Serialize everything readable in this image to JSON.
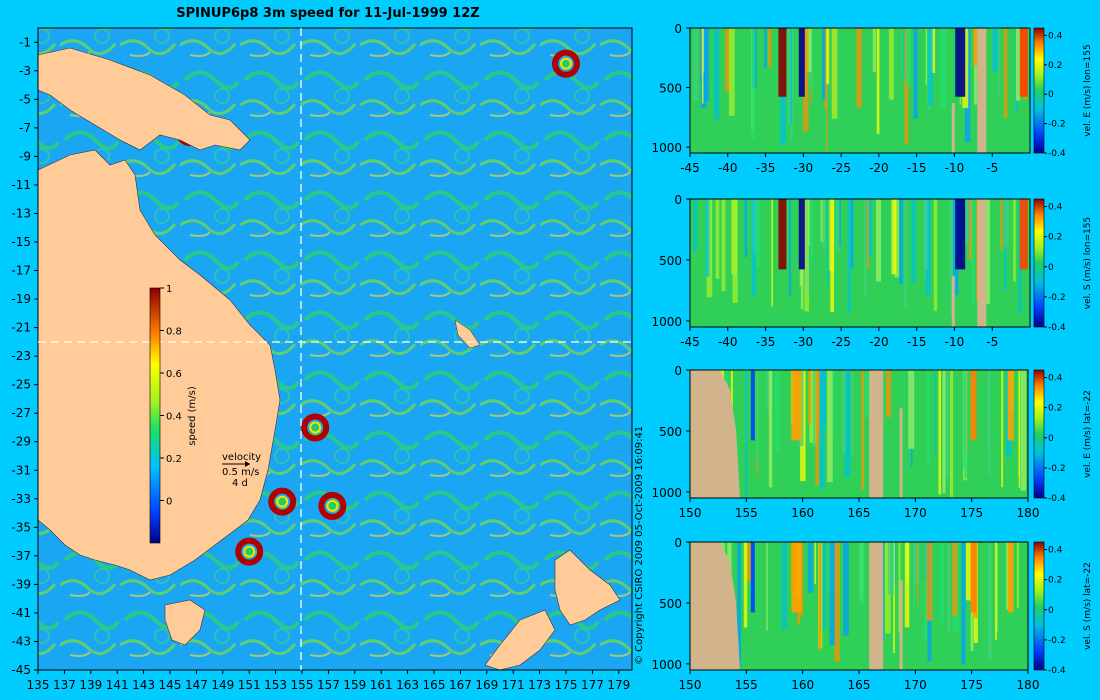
{
  "title": "SPINUP6p8 3m speed for 11-Jul-1999 12Z",
  "copyright": "© Copyright CSIRO 2009   05-Oct-2009 16:09:41",
  "colors": {
    "background": "#00ccff",
    "land": "#ffcc99",
    "section_land": "#d2b48c",
    "cross_line": "#ffffff"
  },
  "chart_data": [
    {
      "type": "heatmap",
      "name": "map",
      "title": "SPINUP6p8 3m speed for 11-Jul-1999 12Z",
      "xlim": [
        135,
        180
      ],
      "ylim": [
        -45,
        0
      ],
      "x_ticks": [
        "135",
        "137",
        "139",
        "141",
        "143",
        "145",
        "147",
        "149",
        "151",
        "153",
        "155",
        "157",
        "159",
        "161",
        "163",
        "165",
        "167",
        "169",
        "171",
        "173",
        "175",
        "177",
        "179"
      ],
      "y_ticks": [
        "-1",
        "-3",
        "-5",
        "-7",
        "-9",
        "-11",
        "-13",
        "-15",
        "-17",
        "-19",
        "-21",
        "-23",
        "-25",
        "-27",
        "-29",
        "-31",
        "-33",
        "-35",
        "-37",
        "-39",
        "-41",
        "-43",
        "-45"
      ],
      "section_lon": 155,
      "section_lat": -22,
      "colorbar": {
        "label": "speed (m/s)",
        "min": -0.2,
        "max": 1,
        "ticks": [
          "0",
          "0.2",
          "0.4",
          "0.6",
          "0.8",
          "1"
        ]
      },
      "velocity_key": {
        "label": "velocity",
        "speed": "0.5 m/s",
        "time": "4 d"
      },
      "eddies": [
        {
          "lon": 153.5,
          "lat": -33.2,
          "speed": 1.0
        },
        {
          "lon": 157.3,
          "lat": -33.5,
          "speed": 0.9
        },
        {
          "lon": 151.0,
          "lat": -36.7,
          "speed": 1.0
        },
        {
          "lon": 146.5,
          "lat": -7.3,
          "speed": 1.0
        },
        {
          "lon": 156.0,
          "lat": -28.0,
          "speed": 0.9
        },
        {
          "lon": 175.0,
          "lat": -2.5,
          "speed": 0.9
        }
      ]
    },
    {
      "type": "heatmap",
      "name": "section-east-lon155",
      "xlim": [
        -45,
        0
      ],
      "ylim": [
        1050,
        0
      ],
      "x_ticks": [
        "-45",
        "-40",
        "-35",
        "-30",
        "-25",
        "-20",
        "-15",
        "-10",
        "-5"
      ],
      "y_ticks": [
        "0",
        "500",
        "1000"
      ],
      "colorbar": {
        "label": "vel. E (m/s) lon=155",
        "min": -0.4,
        "max": 0.45,
        "ticks": [
          "0.4",
          "0.2",
          "0",
          "-0.2",
          "-0.4"
        ]
      }
    },
    {
      "type": "heatmap",
      "name": "section-south-lon155",
      "xlim": [
        -45,
        0
      ],
      "ylim": [
        1050,
        0
      ],
      "x_ticks": [
        "-45",
        "-40",
        "-35",
        "-30",
        "-25",
        "-20",
        "-15",
        "-10",
        "-5"
      ],
      "y_ticks": [
        "0",
        "500",
        "1000"
      ],
      "colorbar": {
        "label": "vel. S (m/s) lon=155",
        "min": -0.4,
        "max": 0.45,
        "ticks": [
          "0.4",
          "0.2",
          "0",
          "-0.2",
          "-0.4"
        ]
      }
    },
    {
      "type": "heatmap",
      "name": "section-east-lat22",
      "xlim": [
        150,
        180
      ],
      "ylim": [
        1050,
        0
      ],
      "x_ticks": [
        "150",
        "155",
        "160",
        "165",
        "170",
        "175",
        "180"
      ],
      "y_ticks": [
        "0",
        "500",
        "1000"
      ],
      "colorbar": {
        "label": "vel. E (m/s) lat=-22",
        "min": -0.4,
        "max": 0.45,
        "ticks": [
          "0.4",
          "0.2",
          "0",
          "-0.2",
          "-0.4"
        ]
      }
    },
    {
      "type": "heatmap",
      "name": "section-south-lat22",
      "xlim": [
        150,
        180
      ],
      "ylim": [
        1050,
        0
      ],
      "x_ticks": [
        "150",
        "155",
        "160",
        "165",
        "170",
        "175",
        "180"
      ],
      "y_ticks": [
        "0",
        "500",
        "1000"
      ],
      "colorbar": {
        "label": "vel. S (m/s) lat=-22",
        "min": -0.4,
        "max": 0.45,
        "ticks": [
          "0.4",
          "0.2",
          "0",
          "-0.2",
          "-0.4"
        ]
      }
    }
  ]
}
